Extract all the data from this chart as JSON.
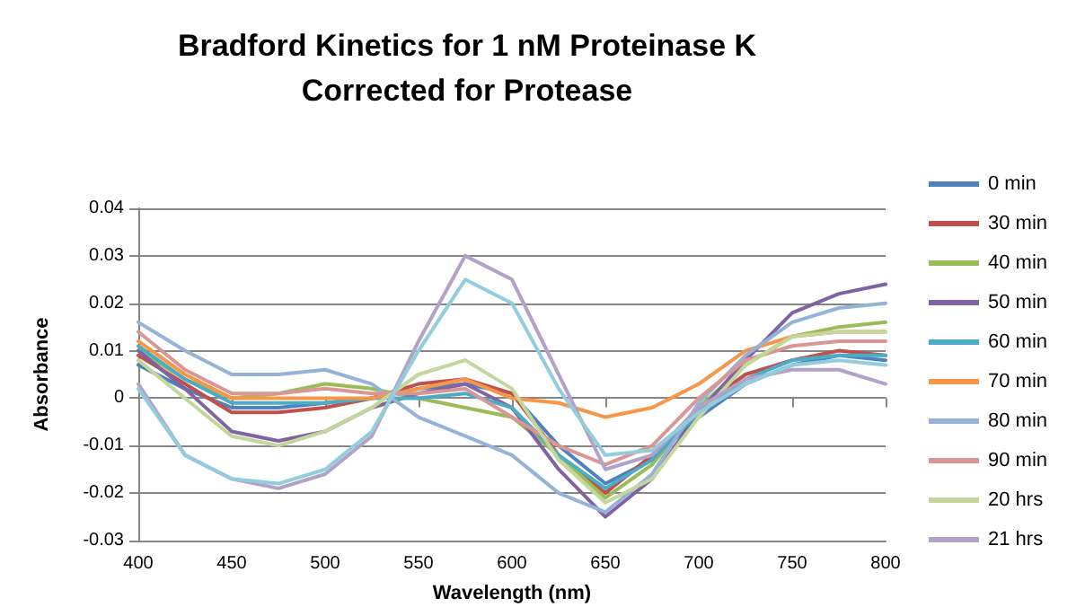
{
  "chart_data": {
    "type": "line",
    "title": "Bradford Kinetics for 1 nM Proteinase K\nCorrected for Protease",
    "xlabel": "Wavelength (nm)",
    "ylabel": "Absorbance",
    "x": [
      400,
      425,
      450,
      475,
      500,
      525,
      550,
      575,
      600,
      625,
      650,
      675,
      700,
      725,
      750,
      775,
      800
    ],
    "xlim": [
      400,
      800
    ],
    "xticks": [
      400,
      450,
      500,
      550,
      600,
      650,
      700,
      750,
      800
    ],
    "ylim": [
      -0.03,
      0.04
    ],
    "yticks": [
      -0.03,
      -0.02,
      -0.01,
      0,
      0.01,
      0.02,
      0.03,
      0.04
    ],
    "grid": "y",
    "legend": "right",
    "marker": "none",
    "line_style": "solid",
    "series": [
      {
        "name": "0 min",
        "color": "#4f81bd",
        "values": [
          0.007,
          0.002,
          -0.002,
          -0.002,
          -0.001,
          0,
          0.002,
          0.003,
          0.001,
          -0.01,
          -0.018,
          -0.013,
          -0.004,
          0.003,
          0.007,
          0.009,
          0.008
        ]
      },
      {
        "name": "30 min",
        "color": "#c0504d",
        "values": [
          0.009,
          0.003,
          -0.003,
          -0.003,
          -0.002,
          0,
          0.003,
          0.004,
          0.001,
          -0.012,
          -0.02,
          -0.012,
          -0.002,
          0.005,
          0.008,
          0.01,
          0.009
        ]
      },
      {
        "name": "40 min",
        "color": "#9bbb59",
        "values": [
          0.01,
          0.004,
          0,
          0.001,
          0.003,
          0.002,
          0,
          -0.002,
          -0.004,
          -0.012,
          -0.021,
          -0.014,
          -0.002,
          0.007,
          0.013,
          0.015,
          0.016
        ]
      },
      {
        "name": "50 min",
        "color": "#8064a2",
        "values": [
          0.01,
          0.002,
          -0.007,
          -0.009,
          -0.007,
          -0.002,
          0.001,
          0.003,
          -0.002,
          -0.015,
          -0.025,
          -0.017,
          -0.003,
          0.008,
          0.018,
          0.022,
          0.024
        ]
      },
      {
        "name": "60 min",
        "color": "#4bacc6",
        "values": [
          0.011,
          0.004,
          -0.001,
          -0.001,
          -0.001,
          0,
          0,
          0.001,
          -0.002,
          -0.012,
          -0.019,
          -0.013,
          -0.003,
          0.004,
          0.008,
          0.009,
          0.009
        ]
      },
      {
        "name": "70 min",
        "color": "#f79646",
        "values": [
          0.012,
          0.005,
          0,
          0,
          0,
          0,
          0.002,
          0.004,
          0,
          -0.001,
          -0.004,
          -0.002,
          0.003,
          0.01,
          0.013,
          0.014,
          0.014
        ]
      },
      {
        "name": "80 min",
        "color": "#95b3d7",
        "values": [
          0.016,
          0.01,
          0.005,
          0.005,
          0.006,
          0.003,
          -0.004,
          -0.008,
          -0.012,
          -0.02,
          -0.024,
          -0.016,
          -0.001,
          0.009,
          0.016,
          0.019,
          0.02
        ]
      },
      {
        "name": "90 min",
        "color": "#d99694",
        "values": [
          0.014,
          0.006,
          0.001,
          0.001,
          0.002,
          0.001,
          0.001,
          0.002,
          -0.004,
          -0.01,
          -0.014,
          -0.01,
          0,
          0.008,
          0.011,
          0.012,
          0.012
        ]
      },
      {
        "name": "20 hrs",
        "color": "#c3d69b",
        "values": [
          0.008,
          0,
          -0.008,
          -0.01,
          -0.007,
          -0.002,
          0.005,
          0.008,
          0.002,
          -0.013,
          -0.022,
          -0.017,
          -0.004,
          0.007,
          0.013,
          0.014,
          0.014
        ]
      },
      {
        "name": "21 hrs",
        "color": "#b3a2c7",
        "values": [
          0.003,
          -0.012,
          -0.017,
          -0.019,
          -0.016,
          -0.008,
          0.012,
          0.03,
          0.025,
          0.005,
          -0.015,
          -0.012,
          -0.002,
          0.004,
          0.006,
          0.006,
          0.003
        ]
      },
      {
        "color": "#93cddd",
        "values": [
          0.002,
          -0.012,
          -0.017,
          -0.018,
          -0.015,
          -0.007,
          0.01,
          0.025,
          0.02,
          0.002,
          -0.012,
          -0.011,
          -0.003,
          0.003,
          0.007,
          0.008,
          0.007
        ]
      }
    ]
  }
}
